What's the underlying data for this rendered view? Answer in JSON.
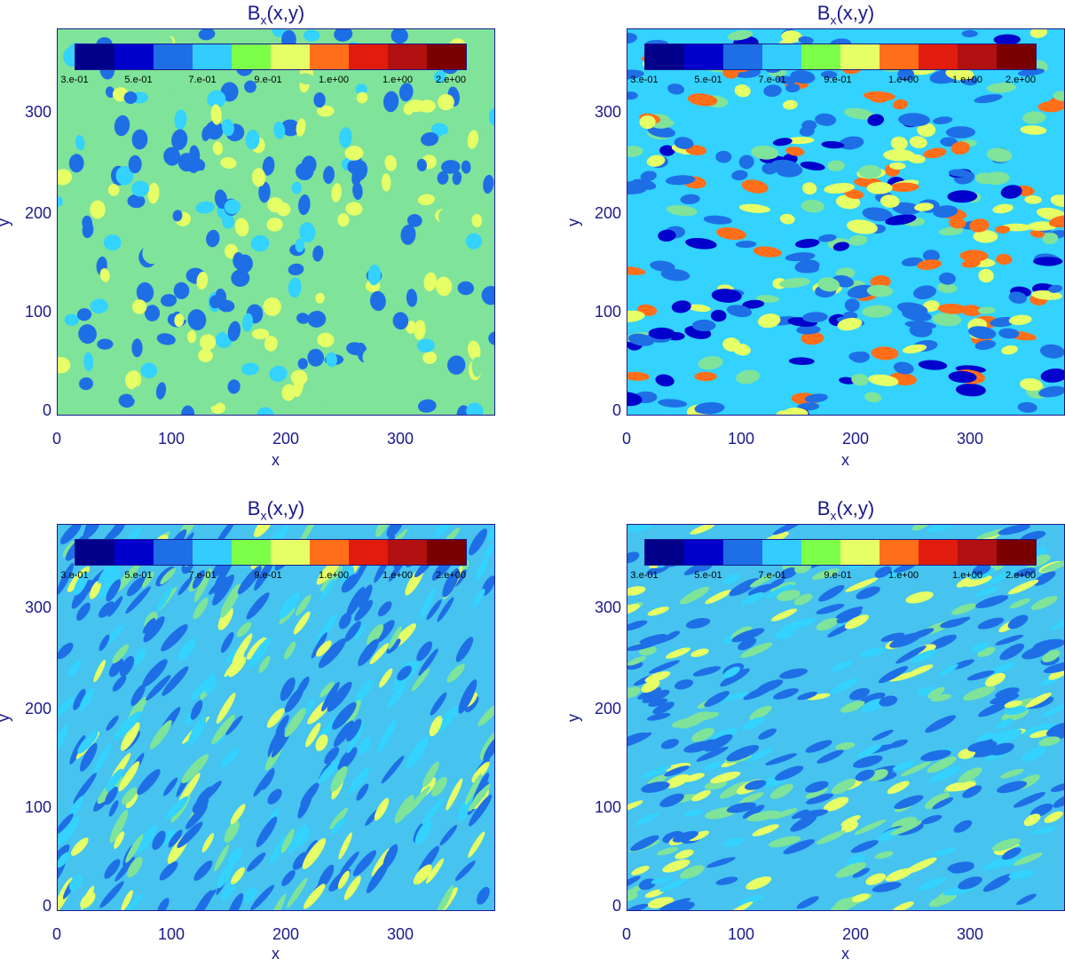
{
  "colors": {
    "axis": "#1a1a8c",
    "scale": [
      "#00008b",
      "#0000cd",
      "#1e6fe6",
      "#33ccff",
      "#7dff4a",
      "#e6ff66",
      "#ff6f1a",
      "#e01c0c",
      "#b01010",
      "#7a0000"
    ]
  },
  "chart_data": [
    {
      "type": "heatmap",
      "title": "B",
      "title_sub": "x",
      "title_suffix": "(x,y)",
      "xlabel": "x",
      "ylabel": "y",
      "xlim": [
        0,
        383
      ],
      "ylim": [
        0,
        383
      ],
      "xticks": [
        "0",
        "100",
        "200",
        "300"
      ],
      "yticks": [
        "0",
        "100",
        "200",
        "300"
      ],
      "colorbar_labels": [
        "3.e-01",
        "5.e-01",
        "7.e-01",
        "9.e-01",
        "1.e+00",
        "1.e+00",
        "2.e+00"
      ],
      "pattern": "isotropic blobs"
    },
    {
      "type": "heatmap",
      "title": "B",
      "title_sub": "x",
      "title_suffix": "(x,y)",
      "xlabel": "x",
      "ylabel": "y",
      "xlim": [
        0,
        383
      ],
      "ylim": [
        0,
        383
      ],
      "xticks": [
        "0",
        "100",
        "200",
        "300"
      ],
      "yticks": [
        "0",
        "100",
        "200",
        "300"
      ],
      "colorbar_labels": [
        "3.e-01",
        "5.e-01",
        "7.e-01",
        "9.e-01",
        "1.e+00",
        "1.e+00",
        "2.e+00"
      ],
      "pattern": "horizontally elongated blobs"
    },
    {
      "type": "heatmap",
      "title": "B",
      "title_sub": "x",
      "title_suffix": "(x,y)",
      "xlabel": "x",
      "ylabel": "y",
      "xlim": [
        0,
        383
      ],
      "ylim": [
        0,
        383
      ],
      "xticks": [
        "0",
        "100",
        "200",
        "300"
      ],
      "yticks": [
        "0",
        "100",
        "200",
        "300"
      ],
      "colorbar_labels": [
        "3.e-01",
        "5.e-01",
        "7.e-01",
        "9.e-01",
        "1.e+00",
        "1.e+00",
        "2.e+00"
      ],
      "pattern": "diagonal streaks"
    },
    {
      "type": "heatmap",
      "title": "B",
      "title_sub": "x",
      "title_suffix": "(x,y)",
      "xlabel": "x",
      "ylabel": "y",
      "xlim": [
        0,
        383
      ],
      "ylim": [
        0,
        383
      ],
      "xticks": [
        "0",
        "100",
        "200",
        "300"
      ],
      "yticks": [
        "0",
        "100",
        "200",
        "300"
      ],
      "colorbar_labels": [
        "3.e-01",
        "5.e-01",
        "7.e-01",
        "9.e-01",
        "1.e+00",
        "1.e+00",
        "2.e+00"
      ],
      "pattern": "shallow diagonal streaks"
    }
  ]
}
